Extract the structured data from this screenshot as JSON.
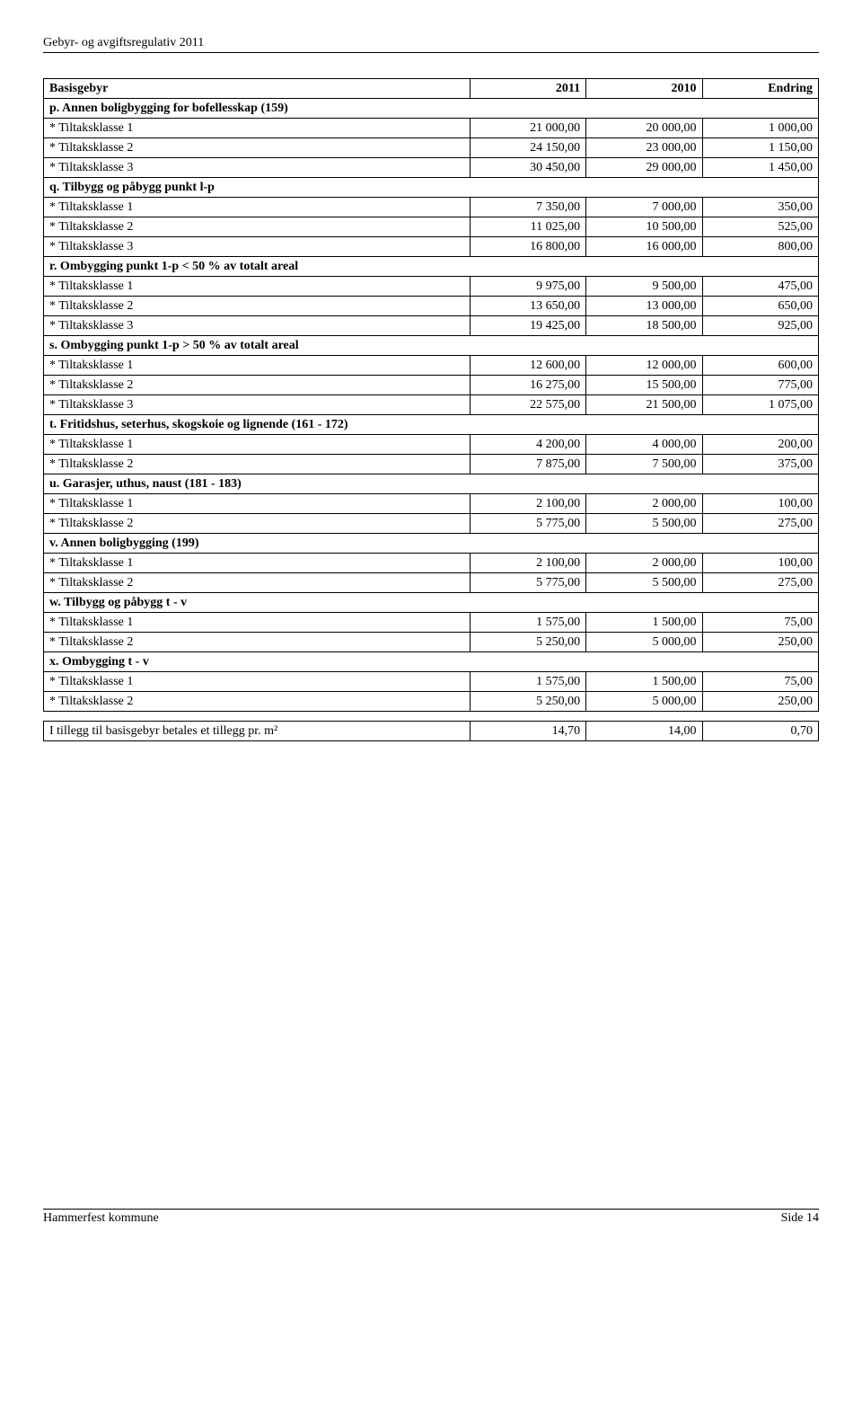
{
  "header": "Gebyr- og avgiftsregulativ 2011",
  "footer_left": "Hammerfest kommune",
  "footer_right": "Side 14",
  "table1": {
    "headers": [
      "Basisgebyr",
      "2011",
      "2010",
      "Endring"
    ],
    "sections": [
      {
        "label": "p. Annen boligbygging for bofellesskap (159)",
        "rows": [
          [
            "* Tiltaksklasse 1",
            "21 000,00",
            "20 000,00",
            "1 000,00"
          ],
          [
            "* Tiltaksklasse 2",
            "24 150,00",
            "23 000,00",
            "1 150,00"
          ],
          [
            "* Tiltaksklasse 3",
            "30 450,00",
            "29 000,00",
            "1 450,00"
          ]
        ]
      },
      {
        "label": "q. Tilbygg og påbygg punkt l-p",
        "rows": [
          [
            "* Tiltaksklasse 1",
            "7 350,00",
            "7 000,00",
            "350,00"
          ],
          [
            "* Tiltaksklasse 2",
            "11 025,00",
            "10 500,00",
            "525,00"
          ],
          [
            "* Tiltaksklasse 3",
            "16 800,00",
            "16 000,00",
            "800,00"
          ]
        ]
      },
      {
        "label": "r. Ombygging punkt 1-p < 50 % av totalt areal",
        "rows": [
          [
            "* Tiltaksklasse 1",
            "9 975,00",
            "9 500,00",
            "475,00"
          ],
          [
            "* Tiltaksklasse 2",
            "13 650,00",
            "13 000,00",
            "650,00"
          ],
          [
            "* Tiltaksklasse 3",
            "19 425,00",
            "18 500,00",
            "925,00"
          ]
        ]
      },
      {
        "label": "s. Ombygging punkt 1-p > 50 % av totalt areal",
        "rows": [
          [
            "* Tiltaksklasse 1",
            "12 600,00",
            "12 000,00",
            "600,00"
          ],
          [
            "* Tiltaksklasse 2",
            "16 275,00",
            "15 500,00",
            "775,00"
          ],
          [
            "* Tiltaksklasse 3",
            "22 575,00",
            "21 500,00",
            "1 075,00"
          ]
        ]
      },
      {
        "label": "t. Fritidshus, seterhus, skogskoie og lignende (161 - 172)",
        "rows": [
          [
            "* Tiltaksklasse 1",
            "4 200,00",
            "4 000,00",
            "200,00"
          ],
          [
            "* Tiltaksklasse 2",
            "7 875,00",
            "7 500,00",
            "375,00"
          ]
        ]
      },
      {
        "label": "u. Garasjer, uthus, naust (181 - 183)",
        "rows": [
          [
            "* Tiltaksklasse 1",
            "2 100,00",
            "2 000,00",
            "100,00"
          ],
          [
            "* Tiltaksklasse 2",
            "5 775,00",
            "5 500,00",
            "275,00"
          ]
        ]
      },
      {
        "label": "v. Annen boligbygging (199)",
        "rows": [
          [
            "* Tiltaksklasse 1",
            "2 100,00",
            "2 000,00",
            "100,00"
          ],
          [
            "* Tiltaksklasse 2",
            "5 775,00",
            "5 500,00",
            "275,00"
          ]
        ]
      },
      {
        "label": "w. Tilbygg og påbygg t - v",
        "rows": [
          [
            "* Tiltaksklasse 1",
            "1 575,00",
            "1 500,00",
            "75,00"
          ],
          [
            "* Tiltaksklasse 2",
            "5 250,00",
            "5 000,00",
            "250,00"
          ]
        ]
      },
      {
        "label": "x. Ombygging t - v",
        "rows": [
          [
            "* Tiltaksklasse 1",
            "1 575,00",
            "1 500,00",
            "75,00"
          ],
          [
            "* Tiltaksklasse 2",
            "5 250,00",
            "5 000,00",
            "250,00"
          ]
        ]
      }
    ]
  },
  "table2": {
    "row": [
      "I tillegg til basisgebyr betales et tillegg pr. m²",
      "14,70",
      "14,00",
      "0,70"
    ]
  }
}
